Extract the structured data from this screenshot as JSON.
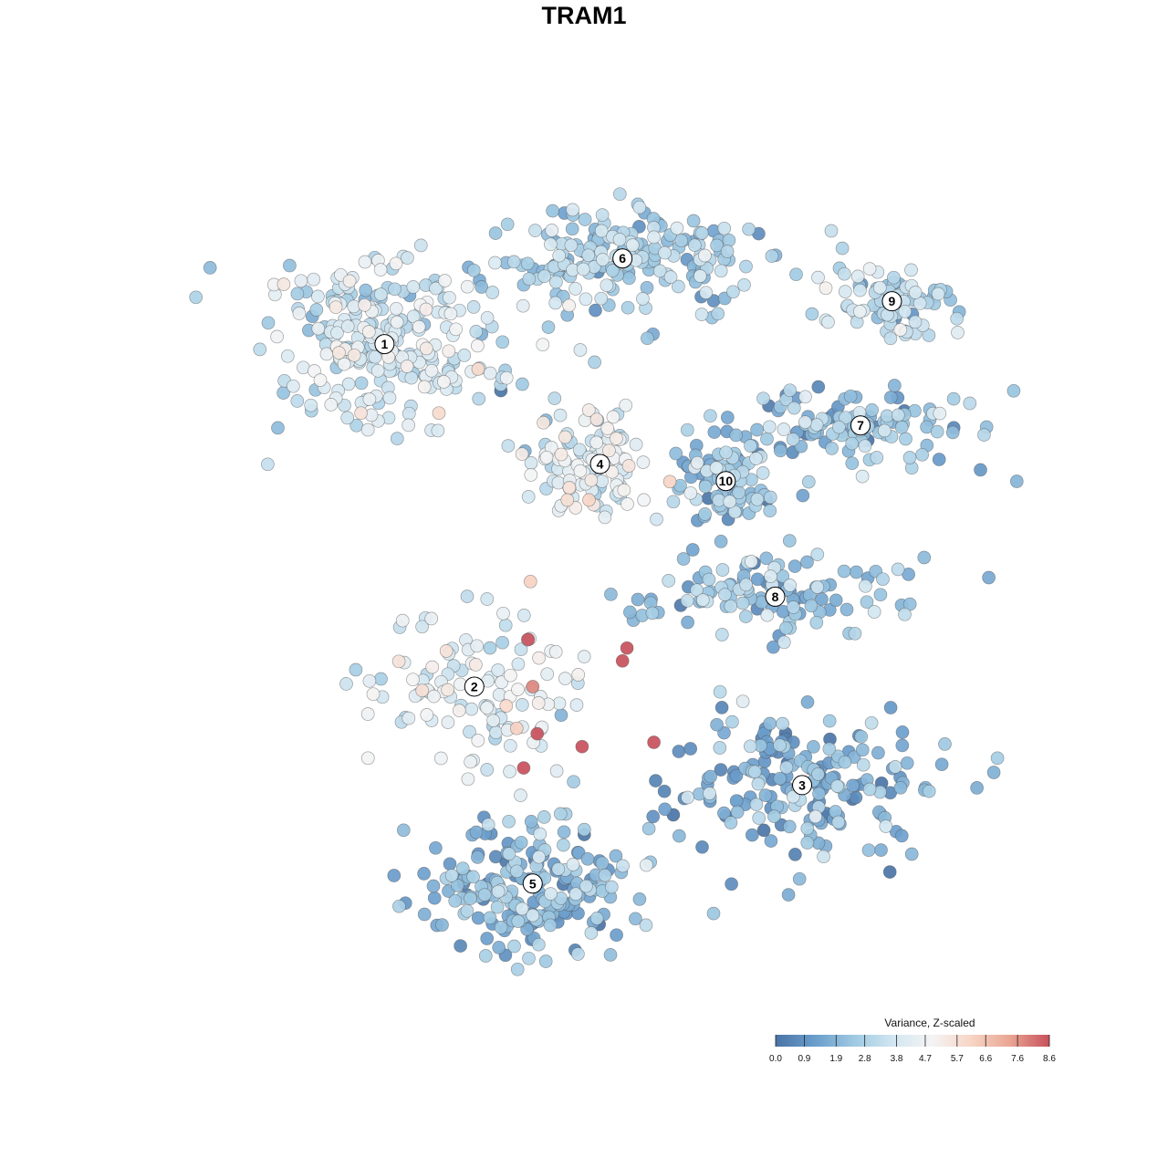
{
  "title": "TRAM1",
  "colors": {
    "scale": [
      "#4a74a6",
      "#6a9dcc",
      "#9ec9e2",
      "#d2e6f1",
      "#f4f4f4",
      "#f7d5c5",
      "#e9a592",
      "#c8505c"
    ],
    "point_stroke": "#555555",
    "label_bg": "#ffffff"
  },
  "chart_data": {
    "type": "scatter",
    "title": "TRAM1",
    "xlabel": "",
    "ylabel": "",
    "axes_visible": false,
    "grid": false,
    "colorbar": {
      "title": "Variance, Z-scaled",
      "ticks": [
        "0.0",
        "0.9",
        "1.9",
        "2.8",
        "3.8",
        "4.7",
        "5.7",
        "6.6",
        "7.6",
        "8.6"
      ],
      "range": [
        0.0,
        8.6
      ],
      "placement": "bottom-right"
    },
    "clusters": [
      {
        "label": "1",
        "x": -3.9,
        "y": 4.8,
        "spread": [
          2.4,
          1.7
        ],
        "mean_value": 3.6,
        "size": 1
      },
      {
        "label": "2",
        "x": -1.9,
        "y": -3.2,
        "spread": [
          2.2,
          1.8
        ],
        "mean_value": 4.1,
        "size": 0.45
      },
      {
        "label": "3",
        "x": 5.4,
        "y": -5.5,
        "spread": [
          2.5,
          1.6
        ],
        "mean_value": 1.6,
        "size": 0.75
      },
      {
        "label": "4",
        "x": 0.9,
        "y": 2.0,
        "spread": [
          1.3,
          1.2
        ],
        "mean_value": 4.3,
        "size": 0.45
      },
      {
        "label": "5",
        "x": -0.6,
        "y": -7.8,
        "spread": [
          2.2,
          1.4
        ],
        "mean_value": 1.8,
        "size": 0.8
      },
      {
        "label": "6",
        "x": 1.4,
        "y": 6.8,
        "spread": [
          3.0,
          1.1
        ],
        "mean_value": 2.6,
        "size": 0.8
      },
      {
        "label": "7",
        "x": 6.7,
        "y": 2.9,
        "spread": [
          2.5,
          0.8
        ],
        "mean_value": 2.4,
        "size": 0.45
      },
      {
        "label": "8",
        "x": 4.8,
        "y": -1.1,
        "spread": [
          2.6,
          0.8
        ],
        "mean_value": 2.2,
        "size": 0.45
      },
      {
        "label": "9",
        "x": 7.4,
        "y": 5.8,
        "spread": [
          1.6,
          0.7
        ],
        "mean_value": 3.0,
        "size": 0.3
      },
      {
        "label": "10",
        "x": 3.7,
        "y": 1.6,
        "spread": [
          1.1,
          1.0
        ],
        "mean_value": 2.2,
        "size": 0.35
      }
    ],
    "hotspot_points": [
      {
        "x": -0.7,
        "y": -2.1,
        "value": 8.6
      },
      {
        "x": 1.4,
        "y": -2.6,
        "value": 8.6
      },
      {
        "x": 1.5,
        "y": -2.3,
        "value": 8.6
      },
      {
        "x": -0.6,
        "y": -3.2,
        "value": 7.8
      },
      {
        "x": -0.5,
        "y": -4.3,
        "value": 8.6
      },
      {
        "x": 0.5,
        "y": -4.6,
        "value": 8.6
      },
      {
        "x": 2.1,
        "y": -4.5,
        "value": 8.6
      },
      {
        "x": -0.8,
        "y": -5.1,
        "value": 8.6
      }
    ]
  }
}
